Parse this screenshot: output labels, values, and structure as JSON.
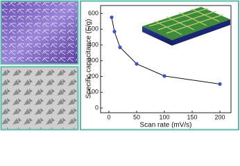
{
  "chart_data": {
    "type": "line",
    "xlabel": "Scan rate (mV/s)",
    "ylabel": "Specific capacitance (F/g)",
    "x": [
      5,
      10,
      20,
      50,
      100,
      200
    ],
    "series": [
      {
        "color": "#3f51c9",
        "values": [
          575,
          485,
          385,
          280,
          203,
          152
        ]
      }
    ],
    "xlim": [
      -15,
      220
    ],
    "xticks": [
      0,
      50,
      100,
      150,
      200
    ],
    "ylim": [
      -30,
      650
    ],
    "yticks": [
      0,
      100,
      200,
      300,
      400,
      500,
      600
    ]
  }
}
